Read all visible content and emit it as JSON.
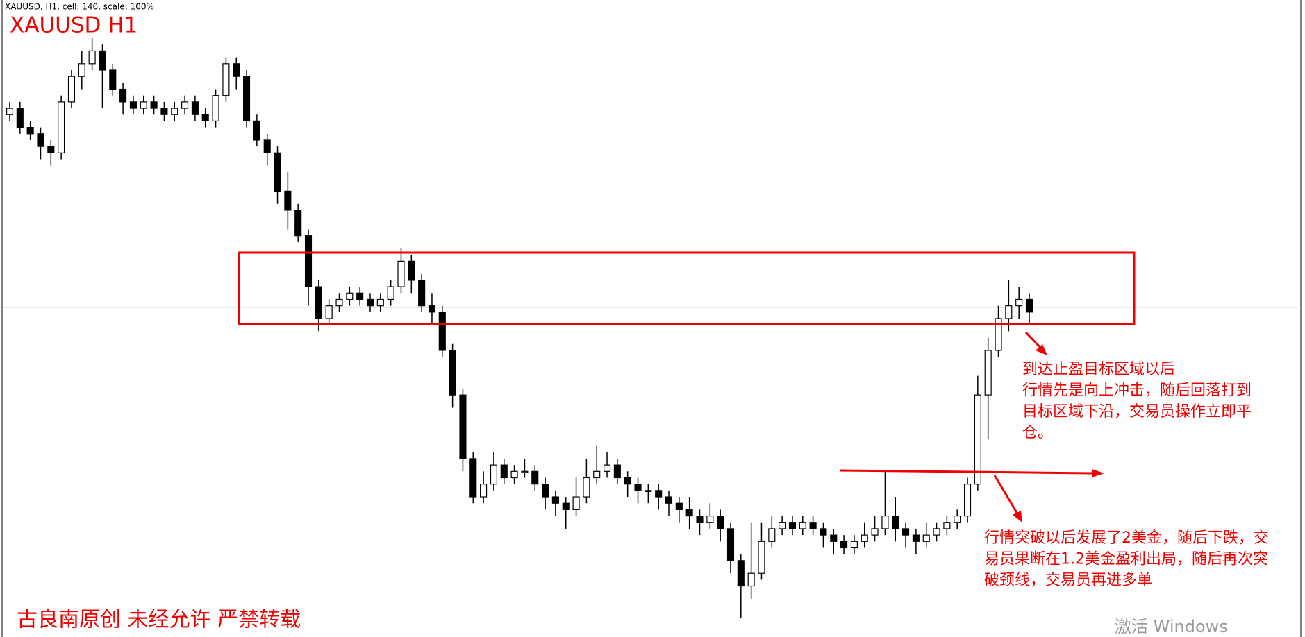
{
  "header": "XAUUSD, H1, cell: 140, scale: 100%",
  "chart_data": {
    "type": "candlestick",
    "title": "XAUUSD H1",
    "ylim": [
      0,
      100
    ],
    "up_color": "#ffffff",
    "down_color": "#000000",
    "wick_color": "#000000",
    "candles": [
      [
        82,
        84,
        81,
        83
      ],
      [
        83,
        84,
        79,
        80
      ],
      [
        80,
        81,
        78,
        79
      ],
      [
        79,
        80,
        75,
        77
      ],
      [
        77,
        78,
        74,
        76
      ],
      [
        76,
        85,
        75,
        84
      ],
      [
        84,
        89,
        83,
        88
      ],
      [
        88,
        92,
        86,
        90
      ],
      [
        90,
        94,
        89,
        92
      ],
      [
        92,
        93,
        83,
        89
      ],
      [
        89,
        90,
        85,
        86
      ],
      [
        86,
        87,
        82,
        84
      ],
      [
        84,
        85,
        82,
        83
      ],
      [
        83,
        85,
        82,
        84
      ],
      [
        84,
        85,
        82,
        83
      ],
      [
        83,
        84,
        81,
        82
      ],
      [
        82,
        84,
        81,
        83
      ],
      [
        83,
        85,
        82,
        84
      ],
      [
        84,
        85,
        81,
        82
      ],
      [
        82,
        83,
        80,
        81
      ],
      [
        81,
        86,
        80,
        85
      ],
      [
        85,
        91,
        84,
        90
      ],
      [
        90,
        91,
        86,
        88
      ],
      [
        88,
        89,
        80,
        81
      ],
      [
        81,
        82,
        77,
        78
      ],
      [
        78,
        79,
        74,
        76
      ],
      [
        76,
        77,
        68,
        70
      ],
      [
        70,
        73,
        64,
        67
      ],
      [
        67,
        68,
        62,
        63
      ],
      [
        63,
        64,
        52,
        55
      ],
      [
        55,
        56,
        48,
        50
      ],
      [
        50,
        53,
        49,
        52
      ],
      [
        52,
        54,
        51,
        53
      ],
      [
        53,
        55,
        52,
        54
      ],
      [
        54,
        55,
        52,
        53
      ],
      [
        53,
        54,
        51,
        52
      ],
      [
        52,
        54,
        51,
        53
      ],
      [
        53,
        56,
        52,
        55
      ],
      [
        55,
        61,
        54,
        59
      ],
      [
        59,
        60,
        54,
        56
      ],
      [
        56,
        57,
        51,
        52
      ],
      [
        52,
        54,
        49,
        51
      ],
      [
        51,
        52,
        44,
        45
      ],
      [
        45,
        46,
        36,
        38
      ],
      [
        38,
        39,
        26,
        28
      ],
      [
        28,
        29,
        21,
        22
      ],
      [
        22,
        26,
        21,
        24
      ],
      [
        24,
        29,
        23,
        27
      ],
      [
        27,
        28,
        24,
        25
      ],
      [
        25,
        27,
        24,
        26
      ],
      [
        26,
        28,
        25,
        26
      ],
      [
        26,
        27,
        23,
        24
      ],
      [
        24,
        25,
        20,
        22
      ],
      [
        22,
        23,
        19,
        21
      ],
      [
        21,
        22,
        17,
        20
      ],
      [
        20,
        25,
        19,
        22
      ],
      [
        22,
        28,
        21,
        25
      ],
      [
        25,
        30,
        24,
        26
      ],
      [
        26,
        29,
        25,
        27
      ],
      [
        27,
        28,
        24,
        25
      ],
      [
        25,
        26,
        22,
        24
      ],
      [
        24,
        25,
        21,
        23
      ],
      [
        23,
        24,
        21,
        23
      ],
      [
        23,
        24,
        20,
        22
      ],
      [
        22,
        23,
        19,
        21
      ],
      [
        21,
        22,
        18,
        20
      ],
      [
        20,
        22,
        17,
        19
      ],
      [
        19,
        20,
        16,
        18
      ],
      [
        18,
        21,
        17,
        19
      ],
      [
        19,
        20,
        15,
        17
      ],
      [
        17,
        18,
        10,
        12
      ],
      [
        12,
        13,
        3,
        8
      ],
      [
        8,
        18,
        6,
        10
      ],
      [
        10,
        18,
        9,
        15
      ],
      [
        15,
        19,
        14,
        17
      ],
      [
        17,
        19,
        16,
        18
      ],
      [
        18,
        19,
        16,
        17
      ],
      [
        17,
        19,
        16,
        18
      ],
      [
        18,
        19,
        16,
        17
      ],
      [
        17,
        18,
        14,
        16
      ],
      [
        16,
        17,
        13,
        15
      ],
      [
        15,
        16,
        13,
        14
      ],
      [
        14,
        16,
        13,
        15
      ],
      [
        15,
        18,
        14,
        16
      ],
      [
        16,
        19,
        15,
        17
      ],
      [
        17,
        26,
        16,
        19
      ],
      [
        19,
        22,
        15,
        17
      ],
      [
        17,
        18,
        14,
        16
      ],
      [
        16,
        17,
        13,
        15
      ],
      [
        15,
        18,
        14,
        16
      ],
      [
        16,
        18,
        15,
        17
      ],
      [
        17,
        19,
        16,
        18
      ],
      [
        18,
        20,
        17,
        19
      ],
      [
        19,
        25,
        18,
        24
      ],
      [
        24,
        41,
        23,
        38
      ],
      [
        38,
        47,
        31,
        45
      ],
      [
        45,
        52,
        44,
        50
      ],
      [
        50,
        56,
        48,
        52
      ],
      [
        52,
        55,
        50,
        53
      ],
      [
        53,
        54,
        49,
        51
      ]
    ],
    "annotations": [
      {
        "lines": [
          "到达止盈目标区域以后",
          "行情先是向上冲击，随后回落打到",
          "目标区域下沿，交易员操作立即平",
          "仓。"
        ]
      },
      {
        "lines": [
          "行情突破以后发展了2美金，随后下跌，交",
          "易员果断在1.2美金盈利出局，随后再次突",
          "破颈线，交易员再进多单"
        ]
      }
    ],
    "watermark": "古良南原创 未经允许 严禁转载"
  },
  "os_notice": "激活 Windows"
}
